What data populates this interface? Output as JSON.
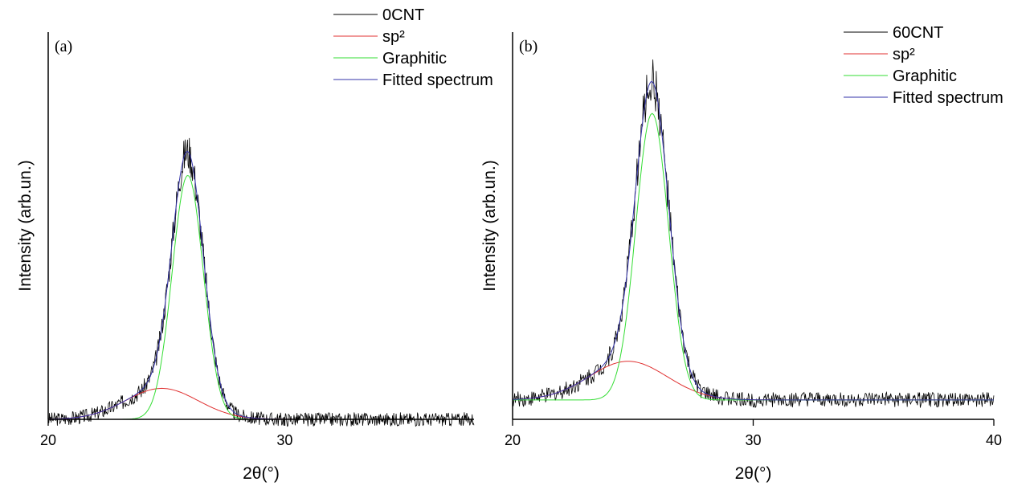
{
  "chart_data": [
    {
      "type": "line",
      "panel_label": "(a)",
      "xlabel": "2θ(°)",
      "ylabel": "Intensity (arb.un.)",
      "xlim": [
        20,
        38
      ],
      "ylim": [
        0,
        1.0
      ],
      "x_ticks": [
        20,
        30
      ],
      "y_ticks_shown": false,
      "legend_placement": "top-right",
      "series": [
        {
          "name": "0CNT",
          "color": "#000000",
          "kind": "measured",
          "noise": 0.018
        },
        {
          "name": "sp²",
          "color": "#e03030",
          "kind": "gaussian",
          "center": 24.8,
          "fwhm": 3.6,
          "height": 0.08
        },
        {
          "name": "Graphitic",
          "color": "#33dd33",
          "kind": "gaussian",
          "center": 25.9,
          "fwhm": 1.55,
          "height": 0.63
        },
        {
          "name": "Fitted spectrum",
          "color": "#3333aa",
          "kind": "fit"
        }
      ],
      "baseline": 0.0,
      "peak_x": 25.9,
      "peak_y": 0.73
    },
    {
      "type": "line",
      "panel_label": "(b)",
      "xlabel": "2θ(°)",
      "ylabel": "Intensity (arb.un.)",
      "xlim": [
        20,
        40
      ],
      "ylim": [
        0,
        1.0
      ],
      "x_ticks": [
        20,
        30,
        40
      ],
      "y_ticks_shown": false,
      "legend_placement": "top-right",
      "series": [
        {
          "name": "60CNT",
          "color": "#000000",
          "kind": "measured",
          "noise": 0.02
        },
        {
          "name": "sp²",
          "color": "#e03030",
          "kind": "gaussian",
          "center": 24.8,
          "fwhm": 3.8,
          "height": 0.1
        },
        {
          "name": "Graphitic",
          "color": "#33dd33",
          "kind": "gaussian",
          "center": 25.8,
          "fwhm": 1.6,
          "height": 0.74
        },
        {
          "name": "Fitted spectrum",
          "color": "#3333aa",
          "kind": "fit"
        }
      ],
      "baseline": 0.05,
      "peak_x": 25.8,
      "peak_y": 0.88
    }
  ]
}
